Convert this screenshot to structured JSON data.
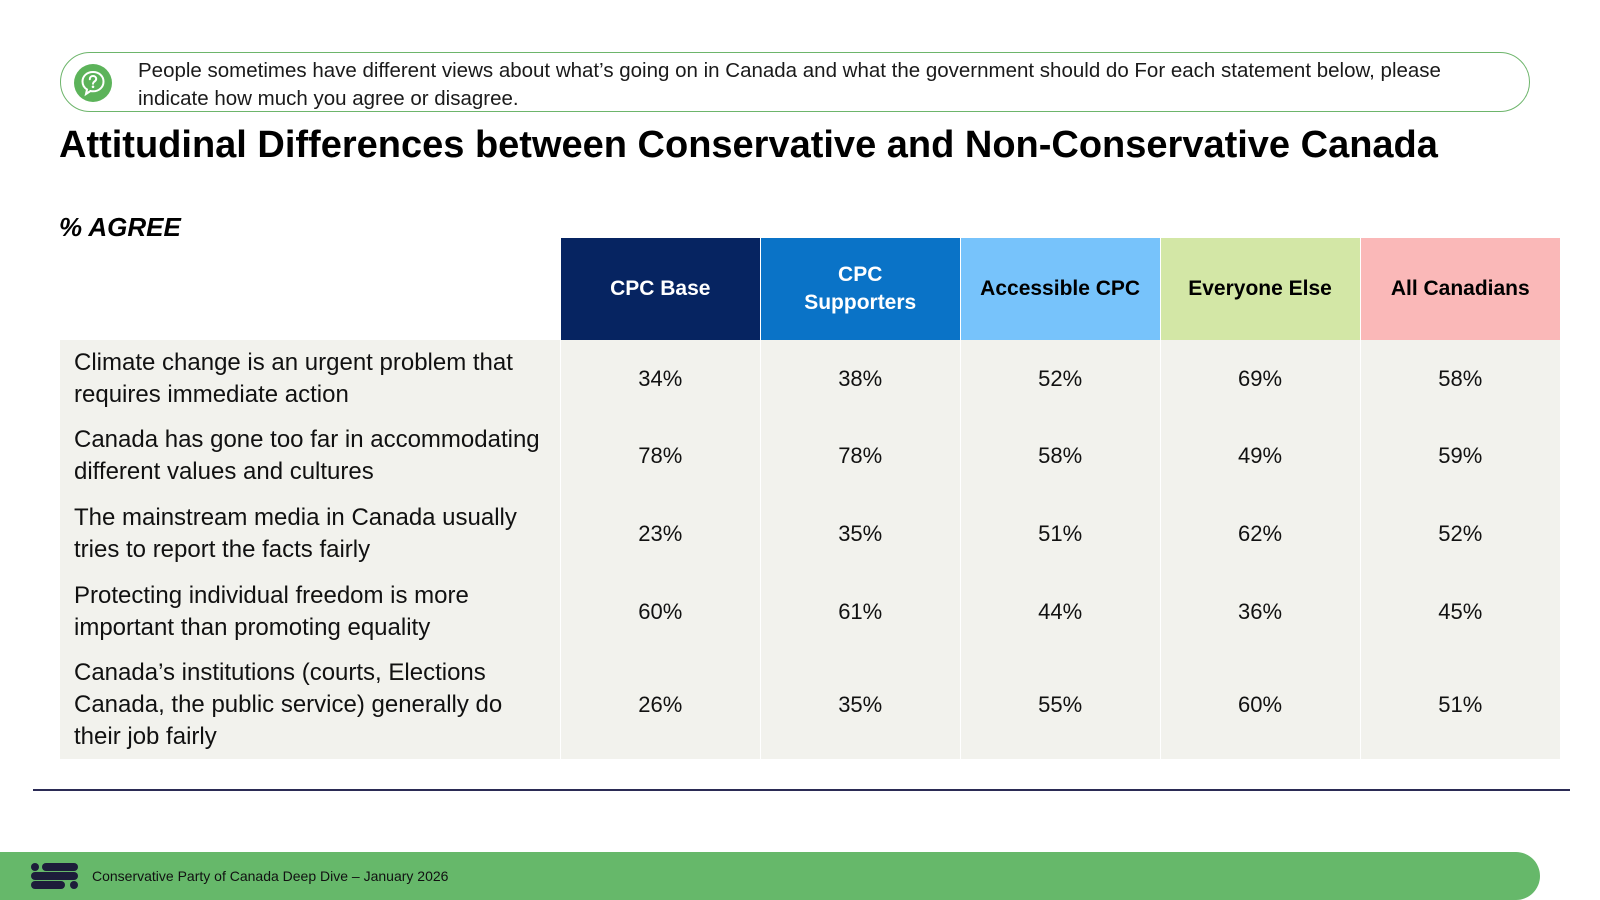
{
  "question": {
    "icon": "question-icon",
    "text": "People sometimes have different views about what’s going on in Canada and what the government should do  For each statement below, please indicate how much you agree or disagree."
  },
  "title": "Attitudinal Differences between Conservative and Non-Conservative Canada",
  "subtitle": "% AGREE",
  "chart_data": {
    "type": "table",
    "title": "Attitudinal Differences between Conservative and Non-Conservative Canada",
    "subtitle": "% AGREE",
    "columns": [
      {
        "name": "CPC Base",
        "color": "#062461",
        "text_color": "#ffffff"
      },
      {
        "name": "CPC Supporters",
        "color": "#0a73c7",
        "text_color": "#ffffff"
      },
      {
        "name": "Accessible CPC",
        "color": "#77c3fb",
        "text_color": "#000000"
      },
      {
        "name": "Everyone Else",
        "color": "#d3e7a6",
        "text_color": "#000000"
      },
      {
        "name": "All Canadians",
        "color": "#fab8b8",
        "text_color": "#000000"
      }
    ],
    "rows": [
      {
        "statement": "Climate change is an urgent problem that requires immediate action",
        "values": [
          "34%",
          "38%",
          "52%",
          "69%",
          "58%"
        ]
      },
      {
        "statement": "Canada has gone too far in accommodating different values and cultures",
        "values": [
          "78%",
          "78%",
          "58%",
          "49%",
          "59%"
        ]
      },
      {
        "statement": "The mainstream media in Canada usually tries to report the facts fairly",
        "values": [
          "23%",
          "35%",
          "51%",
          "62%",
          "52%"
        ]
      },
      {
        "statement": "Protecting individual freedom is more important than promoting equality",
        "values": [
          "60%",
          "61%",
          "44%",
          "36%",
          "45%"
        ]
      },
      {
        "statement": "Canada’s institutions (courts, Elections Canada, the public service) generally do their job fairly",
        "values": [
          "26%",
          "35%",
          "55%",
          "60%",
          "51%"
        ]
      }
    ]
  },
  "footer": {
    "logo": "brand-logo-icon",
    "text": "Conservative Party of Canada Deep Dive – January 2026",
    "color": "#66b86a"
  }
}
